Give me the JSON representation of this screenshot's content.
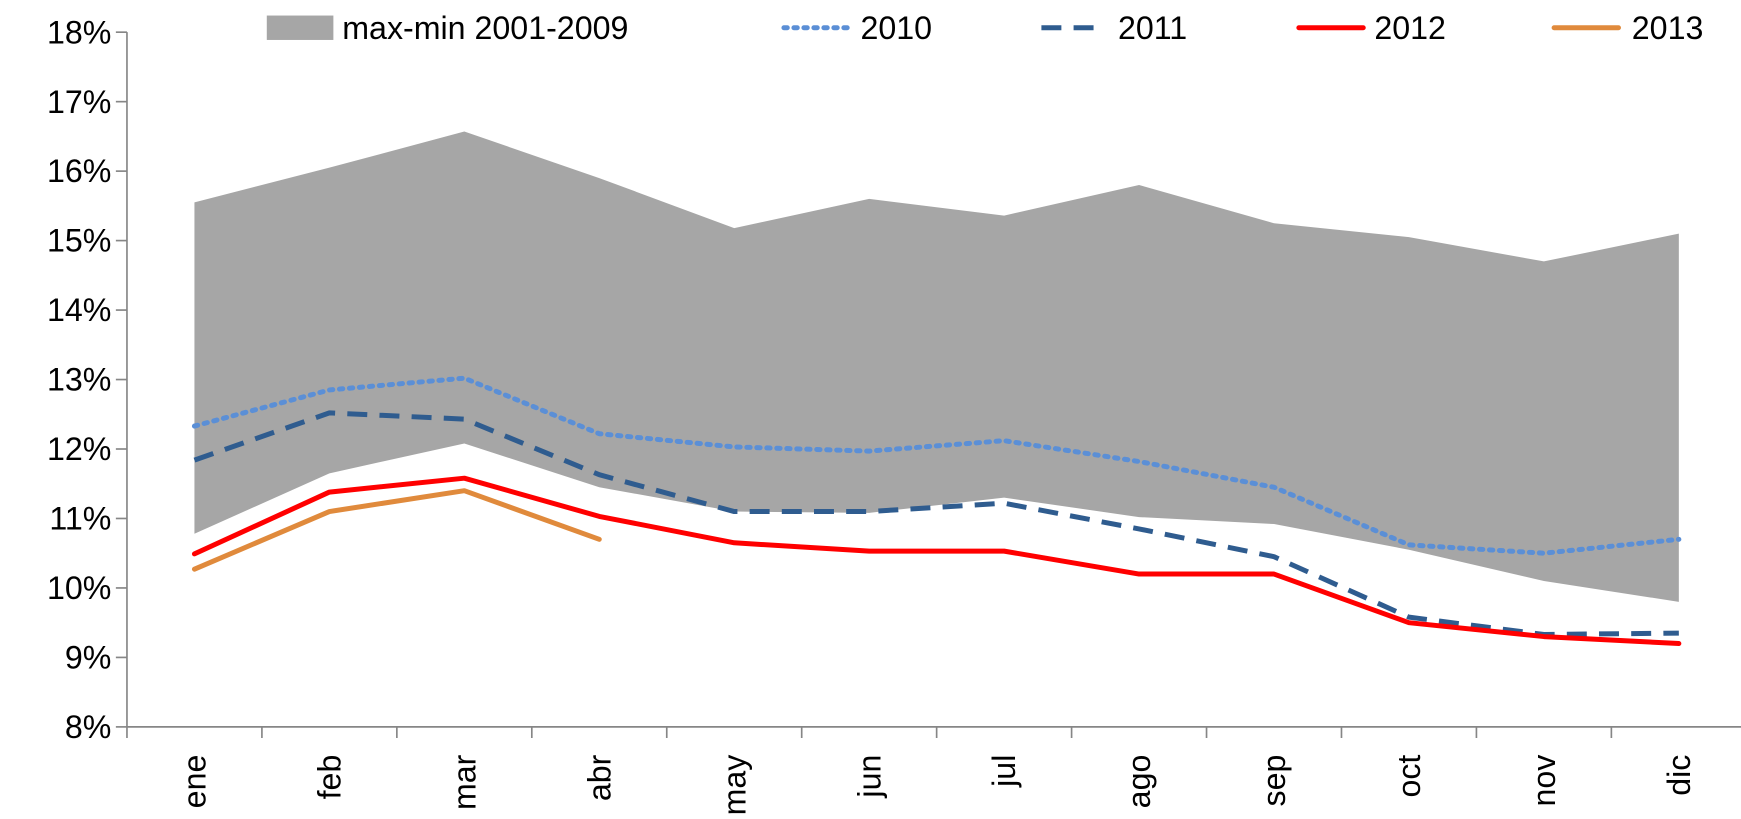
{
  "chart_data": {
    "type": "line",
    "categories": [
      "ene",
      "feb",
      "mar",
      "abr",
      "may",
      "jun",
      "jul",
      "ago",
      "sep",
      "oct",
      "nov",
      "dic"
    ],
    "ylim": [
      8,
      18
    ],
    "yticks": [
      {
        "value": 8,
        "label": "8%"
      },
      {
        "value": 9,
        "label": "9%"
      },
      {
        "value": 10,
        "label": "10%"
      },
      {
        "value": 11,
        "label": "11%"
      },
      {
        "value": 12,
        "label": "12%"
      },
      {
        "value": 13,
        "label": "13%"
      },
      {
        "value": 14,
        "label": "14%"
      },
      {
        "value": 15,
        "label": "15%"
      },
      {
        "value": 16,
        "label": "16%"
      },
      {
        "value": 17,
        "label": "17%"
      },
      {
        "value": 18,
        "label": "18%"
      }
    ],
    "grid": false,
    "legend": "top",
    "series": [
      {
        "name": "max-min 2001-2009",
        "color": "#a6a6a6",
        "style": "band",
        "high": [
          15.55,
          16.05,
          16.57,
          15.9,
          15.18,
          15.6,
          15.36,
          15.8,
          15.25,
          15.05,
          14.7,
          15.1
        ],
        "low": [
          10.78,
          11.65,
          12.08,
          11.45,
          11.1,
          11.08,
          11.3,
          11.02,
          10.92,
          10.55,
          10.1,
          9.8
        ]
      },
      {
        "name": "2010",
        "color": "#5b8fd6",
        "style": "dotted",
        "values": [
          12.33,
          12.85,
          13.02,
          12.22,
          12.03,
          11.97,
          12.12,
          11.82,
          11.45,
          10.62,
          10.5,
          10.7
        ]
      },
      {
        "name": "2011",
        "color": "#2f5c8f",
        "style": "dashed",
        "values": [
          11.84,
          12.52,
          12.43,
          11.63,
          11.1,
          11.1,
          11.22,
          10.85,
          10.45,
          9.58,
          9.33,
          9.35
        ]
      },
      {
        "name": "2012",
        "color": "#ff0000",
        "style": "solid",
        "values": [
          10.49,
          11.38,
          11.58,
          11.03,
          10.65,
          10.53,
          10.53,
          10.2,
          10.2,
          9.5,
          9.3,
          9.2
        ]
      },
      {
        "name": "2013",
        "color": "#e08a3c",
        "style": "solid",
        "values": [
          10.27,
          11.1,
          11.4,
          10.7,
          null,
          null,
          null,
          null,
          null,
          null,
          null,
          null
        ]
      }
    ]
  }
}
